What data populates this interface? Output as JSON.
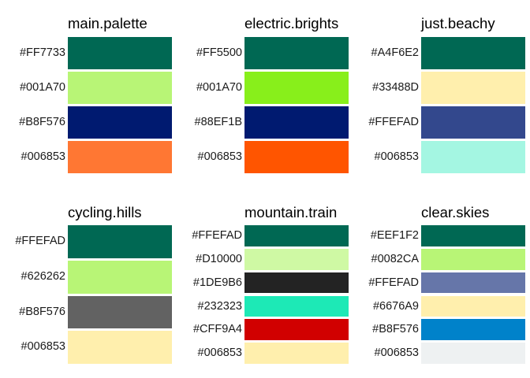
{
  "panels": [
    {
      "title": "main.palette",
      "labels": [
        "#FF7733",
        "#001A70",
        "#B8F576",
        "#006853"
      ],
      "colors": [
        "#006853",
        "#B8F576",
        "#001A70",
        "#FF7733"
      ]
    },
    {
      "title": "electric.brights",
      "labels": [
        "#FF5500",
        "#001A70",
        "#88EF1B",
        "#006853"
      ],
      "colors": [
        "#006853",
        "#88EF1B",
        "#001A70",
        "#FF5500"
      ]
    },
    {
      "title": "just.beachy",
      "labels": [
        "#A4F6E2",
        "#33488D",
        "#FFEFAD",
        "#006853"
      ],
      "colors": [
        "#006853",
        "#FFEFAD",
        "#33488D",
        "#A4F6E2"
      ]
    },
    {
      "title": "cycling.hills",
      "labels": [
        "#FFEFAD",
        "#626262",
        "#B8F576",
        "#006853"
      ],
      "colors": [
        "#006853",
        "#B8F576",
        "#626262",
        "#FFEFAD"
      ]
    },
    {
      "title": "mountain.train",
      "labels": [
        "#FFEFAD",
        "#D10000",
        "#1DE9B6",
        "#232323",
        "#CFF9A4",
        "#006853"
      ],
      "colors": [
        "#006853",
        "#CFF9A4",
        "#232323",
        "#1DE9B6",
        "#D10000",
        "#FFEFAD"
      ]
    },
    {
      "title": "clear.skies",
      "labels": [
        "#EEF1F2",
        "#0082CA",
        "#FFEFAD",
        "#6676A9",
        "#B8F576",
        "#006853"
      ],
      "colors": [
        "#006853",
        "#B8F576",
        "#6676A9",
        "#FFEFAD",
        "#0082CA",
        "#EEF1F2"
      ]
    }
  ]
}
